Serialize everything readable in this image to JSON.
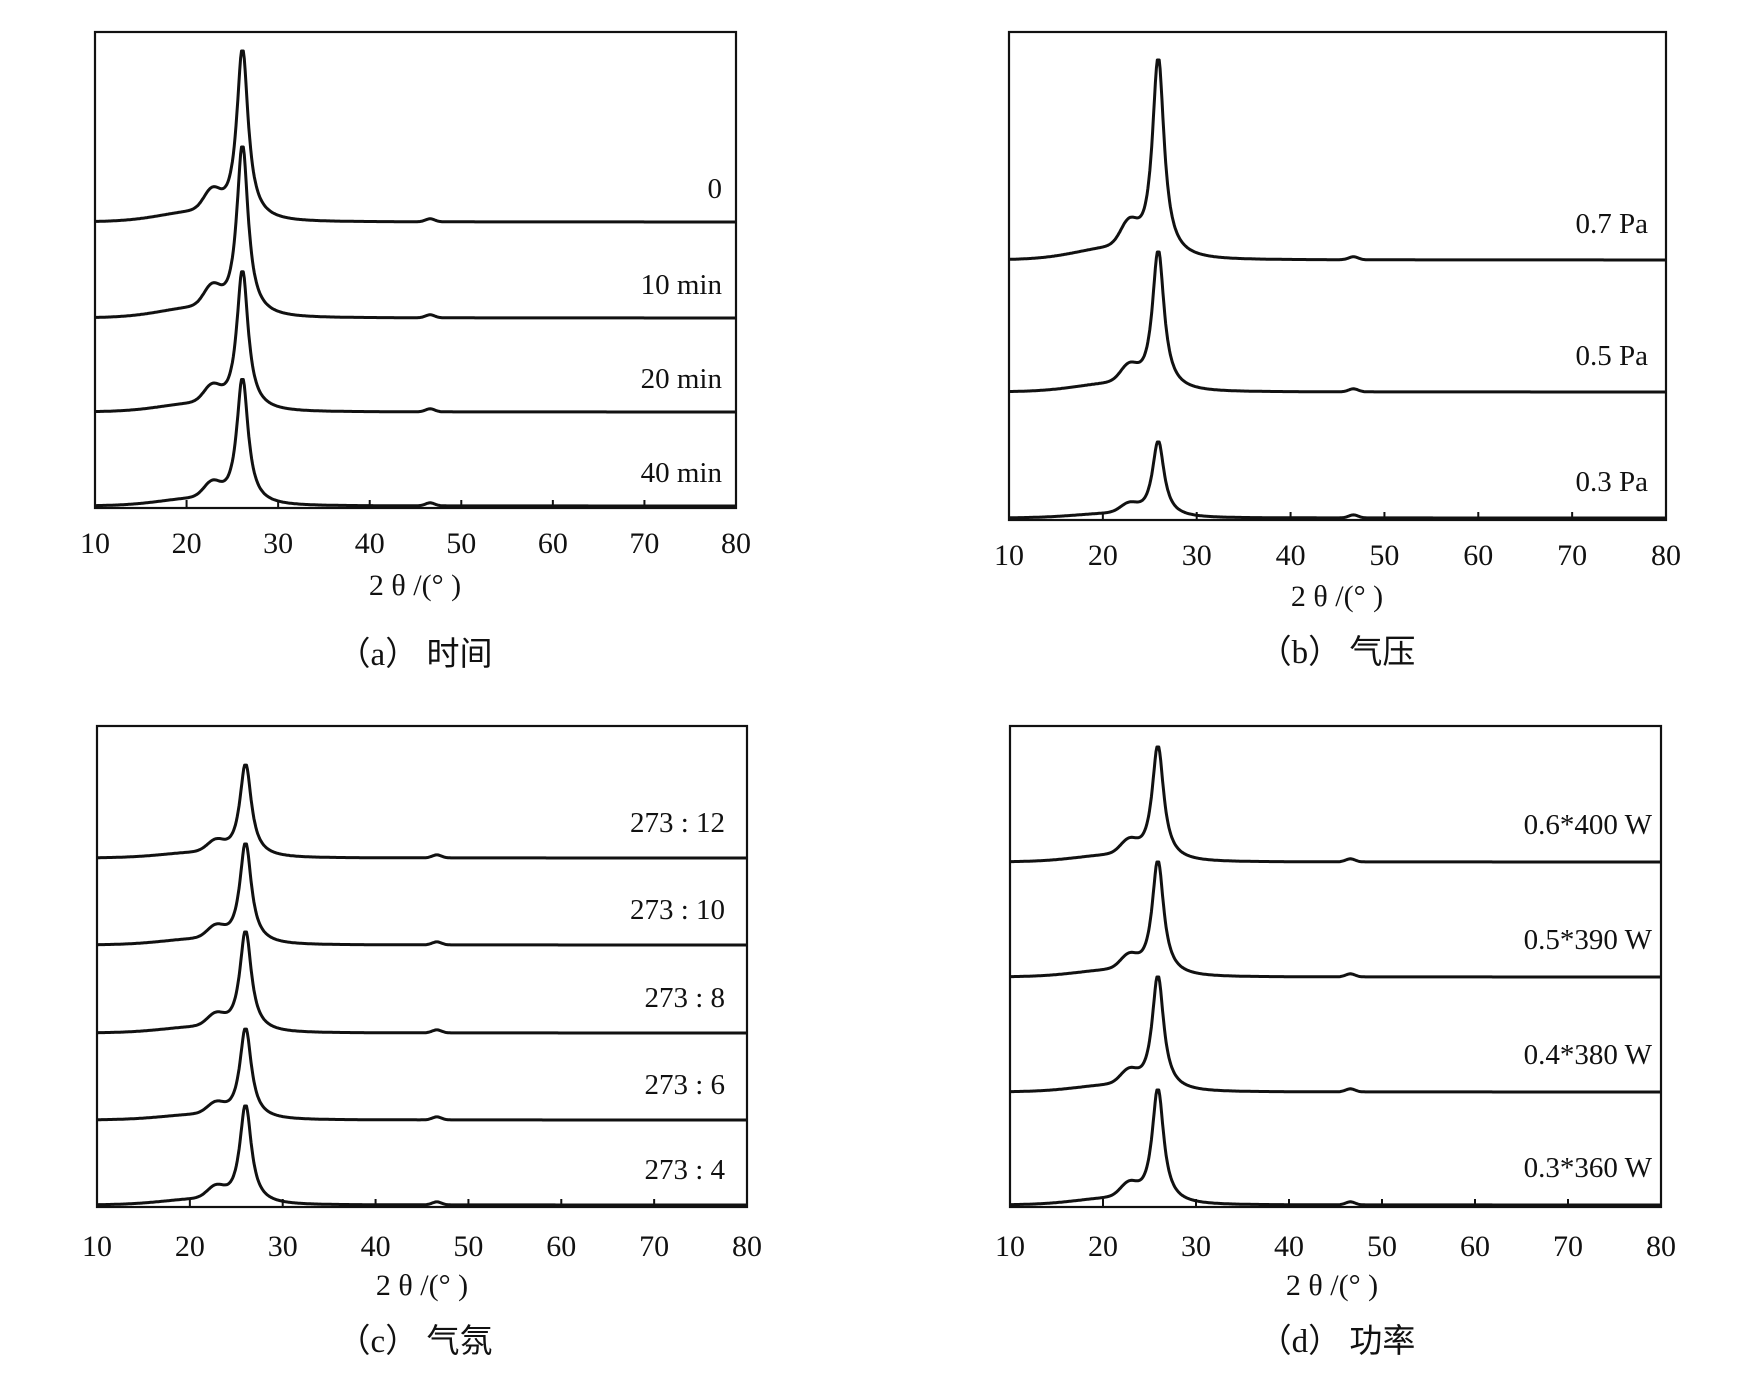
{
  "figure": {
    "panels": [
      {
        "caption": "（a） 时间",
        "xlabel": "2 θ /(°  )"
      },
      {
        "caption": "（b） 气压",
        "xlabel": "2 θ /(°  )"
      },
      {
        "caption": "（c） 气氛",
        "xlabel": "2 θ /(°  )"
      },
      {
        "caption": "（d） 功率",
        "xlabel": "2 θ /(°  )"
      }
    ]
  },
  "chart_data": [
    {
      "type": "line",
      "caption": "（a） 时间",
      "xlabel": "2 θ /(°  )",
      "ylabel": "",
      "xlim": [
        10,
        80
      ],
      "xticks": [
        10,
        20,
        30,
        40,
        50,
        60,
        70,
        80
      ],
      "y_ticks_shown": false,
      "series": [
        {
          "name": "0",
          "peak_x": 26.1,
          "peak_height": 1.0,
          "shoulder_x": 22.8,
          "minor_peak_x": 46.6
        },
        {
          "name": "10 min",
          "peak_x": 26.1,
          "peak_height": 1.0,
          "shoulder_x": 22.8,
          "minor_peak_x": 46.6
        },
        {
          "name": "20 min",
          "peak_x": 26.1,
          "peak_height": 0.82,
          "shoulder_x": 22.8,
          "minor_peak_x": 46.6
        },
        {
          "name": "40 min",
          "peak_x": 26.1,
          "peak_height": 0.74,
          "shoulder_x": 22.8,
          "minor_peak_x": 46.6
        }
      ]
    },
    {
      "type": "line",
      "caption": "（b） 气压",
      "xlabel": "2 θ /(°  )",
      "ylabel": "",
      "xlim": [
        10,
        80
      ],
      "xticks": [
        10,
        20,
        30,
        40,
        50,
        60,
        70,
        80
      ],
      "y_ticks_shown": false,
      "series": [
        {
          "name": "0.7 Pa",
          "peak_x": 25.9,
          "peak_height": 1.0,
          "shoulder_x": 22.8,
          "minor_peak_x": 46.7
        },
        {
          "name": "0.5 Pa",
          "peak_x": 25.9,
          "peak_height": 0.7,
          "shoulder_x": 22.8,
          "minor_peak_x": 46.7
        },
        {
          "name": "0.3 Pa",
          "peak_x": 25.9,
          "peak_height": 0.38,
          "shoulder_x": 22.8,
          "minor_peak_x": 46.7
        }
      ]
    },
    {
      "type": "line",
      "caption": "（c） 气氛",
      "xlabel": "2 θ /(°  )",
      "ylabel": "",
      "xlim": [
        10,
        80
      ],
      "xticks": [
        10,
        20,
        30,
        40,
        50,
        60,
        70,
        80
      ],
      "y_ticks_shown": false,
      "series": [
        {
          "name": "273 : 12",
          "peak_x": 26.0,
          "peak_height": 0.92,
          "shoulder_x": 22.8,
          "minor_peak_x": 46.6
        },
        {
          "name": "273 : 10",
          "peak_x": 26.0,
          "peak_height": 1.0,
          "shoulder_x": 22.8,
          "minor_peak_x": 46.6
        },
        {
          "name": "273 : 8",
          "peak_x": 26.0,
          "peak_height": 1.0,
          "shoulder_x": 22.8,
          "minor_peak_x": 46.6
        },
        {
          "name": "273 : 6",
          "peak_x": 26.0,
          "peak_height": 0.9,
          "shoulder_x": 22.8,
          "minor_peak_x": 46.6
        },
        {
          "name": "273 : 4",
          "peak_x": 26.0,
          "peak_height": 0.98,
          "shoulder_x": 22.8,
          "minor_peak_x": 46.6
        }
      ]
    },
    {
      "type": "line",
      "caption": "（d） 功率",
      "xlabel": "2 θ /(°  )",
      "ylabel": "",
      "xlim": [
        10,
        80
      ],
      "xticks": [
        10,
        20,
        30,
        40,
        50,
        60,
        70,
        80
      ],
      "y_ticks_shown": false,
      "series": [
        {
          "name": "0.6*400 W",
          "peak_x": 25.9,
          "peak_height": 1.0,
          "shoulder_x": 22.8,
          "minor_peak_x": 46.6
        },
        {
          "name": "0.5*390 W",
          "peak_x": 25.9,
          "peak_height": 1.0,
          "shoulder_x": 22.8,
          "minor_peak_x": 46.6
        },
        {
          "name": "0.4*380 W",
          "peak_x": 25.9,
          "peak_height": 1.0,
          "shoulder_x": 22.8,
          "minor_peak_x": 46.6
        },
        {
          "name": "0.3*360 W",
          "peak_x": 25.9,
          "peak_height": 1.0,
          "shoulder_x": 22.8,
          "minor_peak_x": 46.6
        }
      ]
    }
  ]
}
